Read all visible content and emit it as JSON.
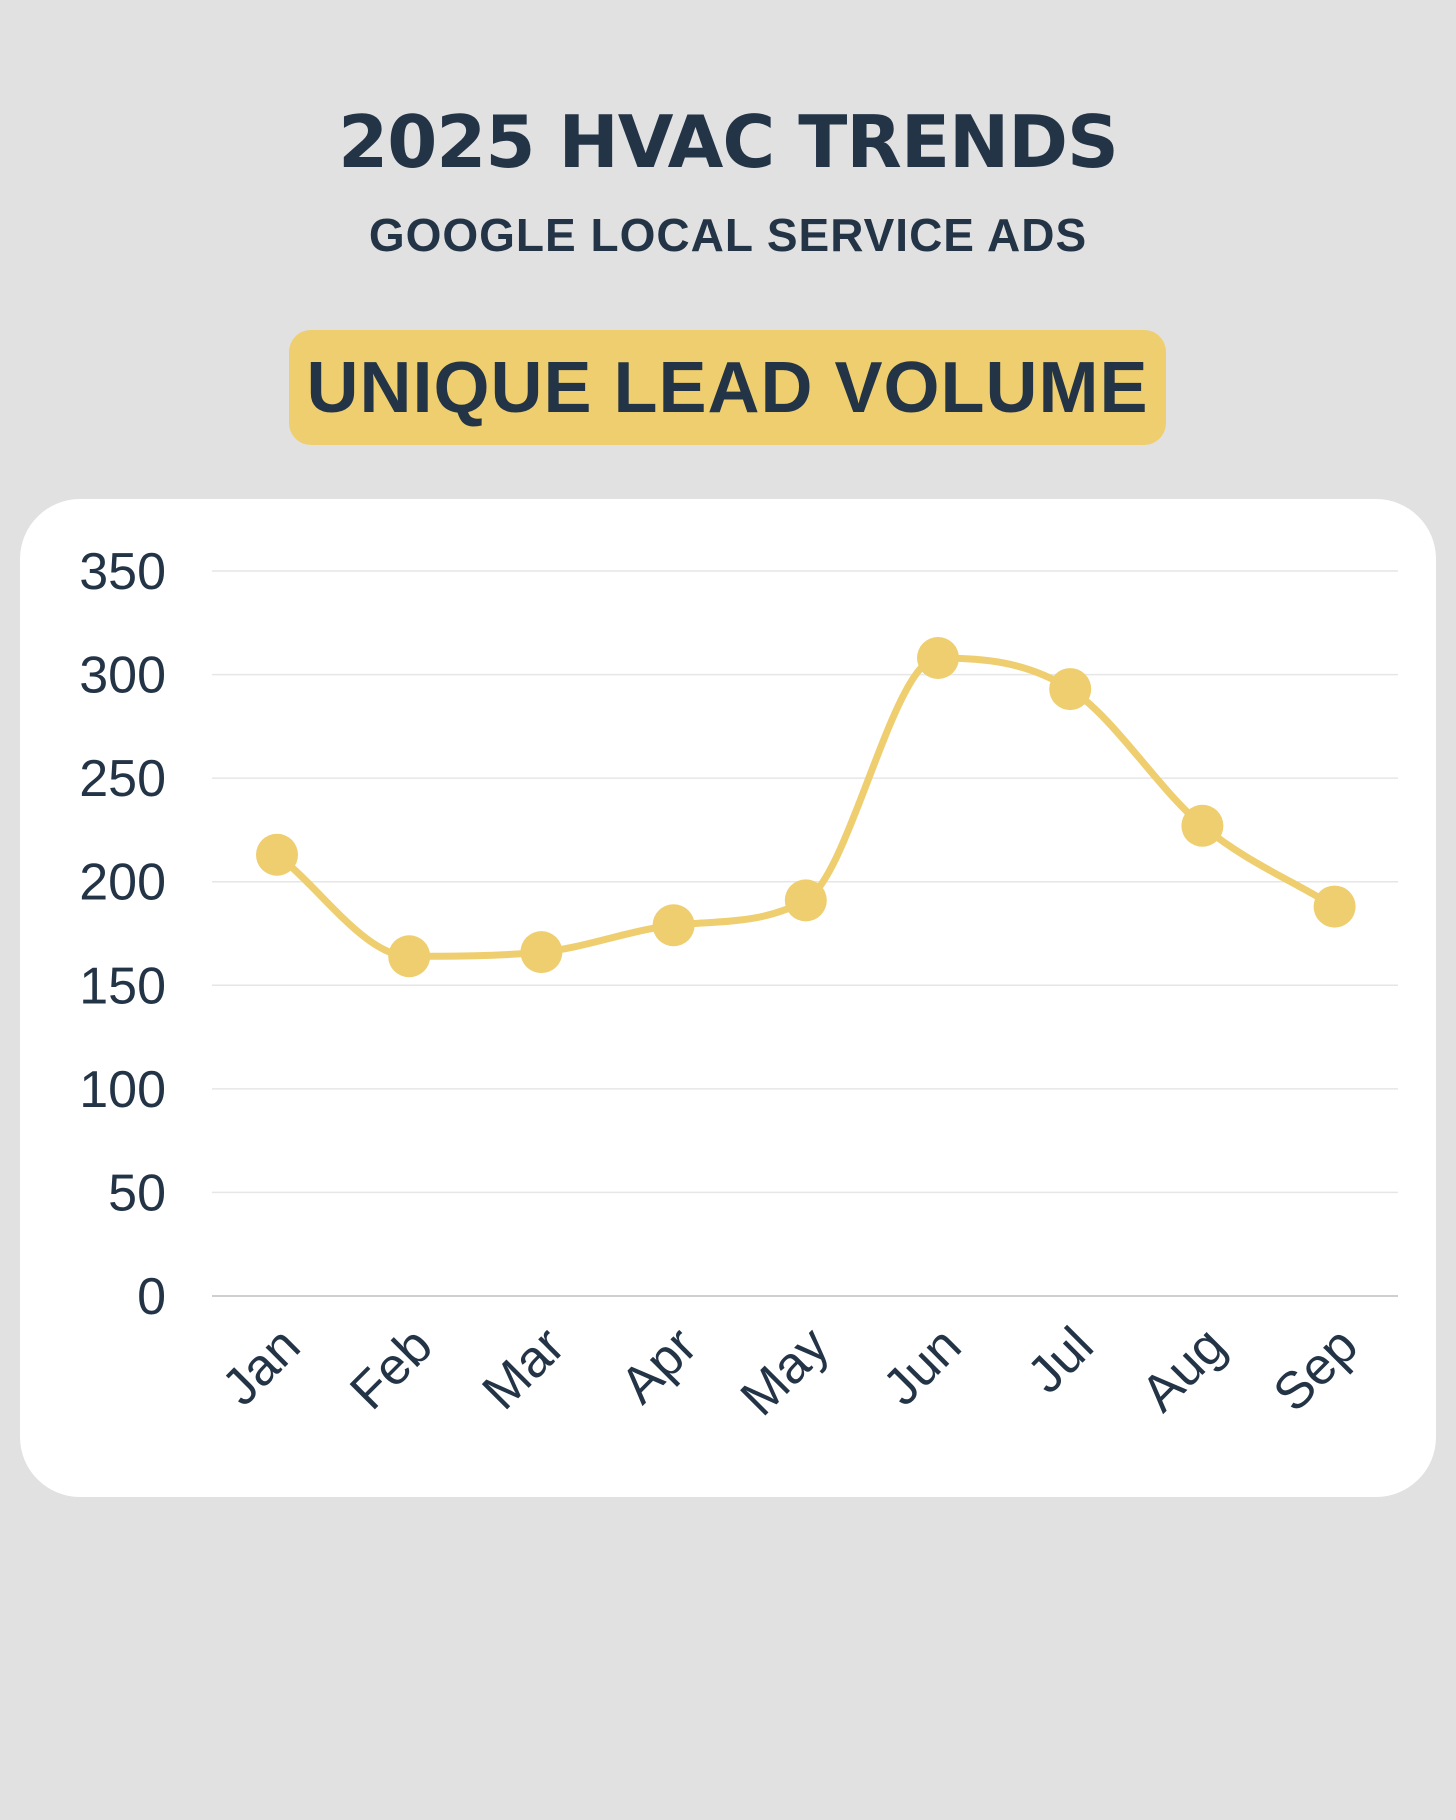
{
  "header": {
    "title": "2025 HVAC TRENDS",
    "subtitle": "GOOGLE LOCAL SERVICE ADS"
  },
  "badge": {
    "label": "UNIQUE LEAD VOLUME",
    "color": "#eece6e"
  },
  "colors": {
    "background": "#e1e1e1",
    "text": "#243447",
    "line": "#eece6e",
    "grid": "#e6e6e6"
  },
  "chart_data": {
    "type": "line",
    "title": "UNIQUE LEAD VOLUME",
    "xlabel": "",
    "ylabel": "",
    "categories": [
      "Jan",
      "Feb",
      "Mar",
      "Apr",
      "May",
      "Jun",
      "Jul",
      "Aug",
      "Sep"
    ],
    "series": [
      {
        "name": "Unique Lead Volume",
        "values": [
          213,
          164,
          166,
          179,
          191,
          308,
          293,
          227,
          188
        ]
      }
    ],
    "ylim": [
      0,
      350
    ],
    "yticks": [
      0,
      50,
      100,
      150,
      200,
      250,
      300,
      350
    ],
    "grid": true,
    "smooth": true
  }
}
